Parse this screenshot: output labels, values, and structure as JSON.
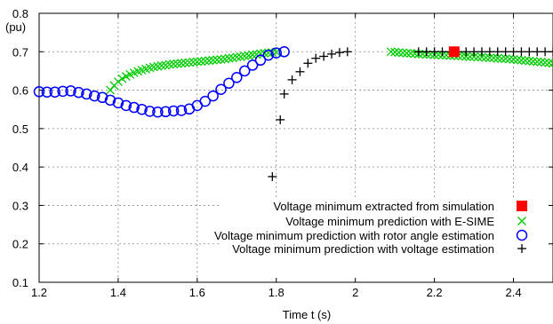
{
  "chart_data": {
    "type": "scatter",
    "title": "",
    "xlabel": "Time t (s)",
    "ylabel": "(pu)",
    "xlim": [
      1.2,
      2.5
    ],
    "ylim": [
      0.1,
      0.8
    ],
    "xticks": [
      1.2,
      1.4,
      1.6,
      1.8,
      2.0,
      2.2,
      2.4
    ],
    "xtick_labels": [
      "1.2",
      "1.4",
      "1.6",
      "1.8",
      "2",
      "2.2",
      "2.4"
    ],
    "yticks": [
      0.1,
      0.2,
      0.3,
      0.4,
      0.5,
      0.6,
      0.7,
      0.8
    ],
    "ytick_labels": [
      "0.1",
      "0.2",
      "0.3",
      "0.4",
      "0.5",
      "0.6",
      "0.7",
      "0.8"
    ],
    "grid": "dashed",
    "legend_position": "bottom-right",
    "series": [
      {
        "name": "Voltage minimum extracted from simulation",
        "marker": "filled-square",
        "color": "#ff0000",
        "points": [
          [
            2.25,
            0.7
          ]
        ]
      },
      {
        "name": "Voltage minimum prediction with E-SIME",
        "marker": "x",
        "color": "#00cc00",
        "points": [
          [
            1.38,
            0.6
          ],
          [
            1.39,
            0.612
          ],
          [
            1.4,
            0.622
          ],
          [
            1.41,
            0.63
          ],
          [
            1.42,
            0.636
          ],
          [
            1.43,
            0.641
          ],
          [
            1.44,
            0.645
          ],
          [
            1.45,
            0.649
          ],
          [
            1.46,
            0.652
          ],
          [
            1.47,
            0.655
          ],
          [
            1.48,
            0.658
          ],
          [
            1.49,
            0.66
          ],
          [
            1.5,
            0.662
          ],
          [
            1.51,
            0.664
          ],
          [
            1.52,
            0.665
          ],
          [
            1.53,
            0.667
          ],
          [
            1.54,
            0.668
          ],
          [
            1.55,
            0.669
          ],
          [
            1.56,
            0.67
          ],
          [
            1.57,
            0.671
          ],
          [
            1.58,
            0.672
          ],
          [
            1.59,
            0.673
          ],
          [
            1.6,
            0.674
          ],
          [
            1.61,
            0.675
          ],
          [
            1.62,
            0.676
          ],
          [
            1.63,
            0.677
          ],
          [
            1.64,
            0.678
          ],
          [
            1.65,
            0.679
          ],
          [
            1.66,
            0.68
          ],
          [
            1.67,
            0.681
          ],
          [
            1.68,
            0.683
          ],
          [
            1.69,
            0.684
          ],
          [
            1.7,
            0.686
          ],
          [
            1.71,
            0.687
          ],
          [
            1.72,
            0.689
          ],
          [
            1.73,
            0.69
          ],
          [
            1.74,
            0.692
          ],
          [
            1.75,
            0.693
          ],
          [
            1.76,
            0.695
          ],
          [
            1.77,
            0.696
          ],
          [
            1.78,
            0.697
          ],
          [
            1.79,
            0.698
          ],
          [
            1.8,
            0.699
          ],
          [
            2.09,
            0.7
          ],
          [
            2.1,
            0.699
          ],
          [
            2.11,
            0.698
          ],
          [
            2.12,
            0.697
          ],
          [
            2.13,
            0.696
          ],
          [
            2.14,
            0.696
          ],
          [
            2.15,
            0.695
          ],
          [
            2.16,
            0.694
          ],
          [
            2.17,
            0.694
          ],
          [
            2.18,
            0.693
          ],
          [
            2.19,
            0.693
          ],
          [
            2.2,
            0.692
          ],
          [
            2.21,
            0.692
          ],
          [
            2.22,
            0.691
          ],
          [
            2.23,
            0.691
          ],
          [
            2.24,
            0.69
          ],
          [
            2.25,
            0.69
          ],
          [
            2.26,
            0.689
          ],
          [
            2.27,
            0.689
          ],
          [
            2.28,
            0.688
          ],
          [
            2.29,
            0.687
          ],
          [
            2.3,
            0.687
          ],
          [
            2.31,
            0.686
          ],
          [
            2.32,
            0.686
          ],
          [
            2.33,
            0.685
          ],
          [
            2.34,
            0.684
          ],
          [
            2.35,
            0.684
          ],
          [
            2.36,
            0.683
          ],
          [
            2.37,
            0.682
          ],
          [
            2.38,
            0.682
          ],
          [
            2.39,
            0.681
          ],
          [
            2.4,
            0.68
          ],
          [
            2.41,
            0.679
          ],
          [
            2.42,
            0.678
          ],
          [
            2.43,
            0.677
          ],
          [
            2.44,
            0.676
          ],
          [
            2.45,
            0.675
          ],
          [
            2.46,
            0.674
          ],
          [
            2.47,
            0.673
          ],
          [
            2.48,
            0.672
          ],
          [
            2.49,
            0.671
          ],
          [
            2.5,
            0.67
          ]
        ]
      },
      {
        "name": "Voltage minimum prediction with rotor angle estimation",
        "marker": "open-circle",
        "color": "#0000ff",
        "points": [
          [
            1.2,
            0.596
          ],
          [
            1.22,
            0.595
          ],
          [
            1.24,
            0.595
          ],
          [
            1.26,
            0.597
          ],
          [
            1.28,
            0.598
          ],
          [
            1.3,
            0.594
          ],
          [
            1.32,
            0.59
          ],
          [
            1.34,
            0.585
          ],
          [
            1.36,
            0.581
          ],
          [
            1.38,
            0.574
          ],
          [
            1.4,
            0.567
          ],
          [
            1.42,
            0.56
          ],
          [
            1.44,
            0.555
          ],
          [
            1.46,
            0.55
          ],
          [
            1.48,
            0.545
          ],
          [
            1.5,
            0.543
          ],
          [
            1.52,
            0.544
          ],
          [
            1.54,
            0.546
          ],
          [
            1.56,
            0.547
          ],
          [
            1.58,
            0.551
          ],
          [
            1.6,
            0.56
          ],
          [
            1.62,
            0.571
          ],
          [
            1.64,
            0.585
          ],
          [
            1.66,
            0.602
          ],
          [
            1.68,
            0.618
          ],
          [
            1.7,
            0.633
          ],
          [
            1.72,
            0.65
          ],
          [
            1.74,
            0.665
          ],
          [
            1.76,
            0.678
          ],
          [
            1.78,
            0.691
          ],
          [
            1.8,
            0.697
          ],
          [
            1.82,
            0.7
          ]
        ]
      },
      {
        "name": "Voltage minimum prediction with voltage estimation",
        "marker": "plus",
        "color": "#000000",
        "points": [
          [
            1.79,
            0.375
          ],
          [
            1.81,
            0.523
          ],
          [
            1.82,
            0.59
          ],
          [
            1.84,
            0.627
          ],
          [
            1.86,
            0.648
          ],
          [
            1.88,
            0.67
          ],
          [
            1.9,
            0.683
          ],
          [
            1.92,
            0.688
          ],
          [
            1.94,
            0.694
          ],
          [
            1.96,
            0.698
          ],
          [
            1.98,
            0.7
          ],
          [
            2.16,
            0.7
          ],
          [
            2.18,
            0.7
          ],
          [
            2.2,
            0.7
          ],
          [
            2.22,
            0.7
          ],
          [
            2.24,
            0.7
          ],
          [
            2.26,
            0.7
          ],
          [
            2.28,
            0.7
          ],
          [
            2.3,
            0.7
          ],
          [
            2.32,
            0.7
          ],
          [
            2.34,
            0.7
          ],
          [
            2.36,
            0.7
          ],
          [
            2.38,
            0.7
          ],
          [
            2.4,
            0.7
          ],
          [
            2.42,
            0.7
          ],
          [
            2.44,
            0.7
          ],
          [
            2.46,
            0.7
          ],
          [
            2.48,
            0.7
          ],
          [
            2.5,
            0.7
          ]
        ]
      }
    ]
  }
}
